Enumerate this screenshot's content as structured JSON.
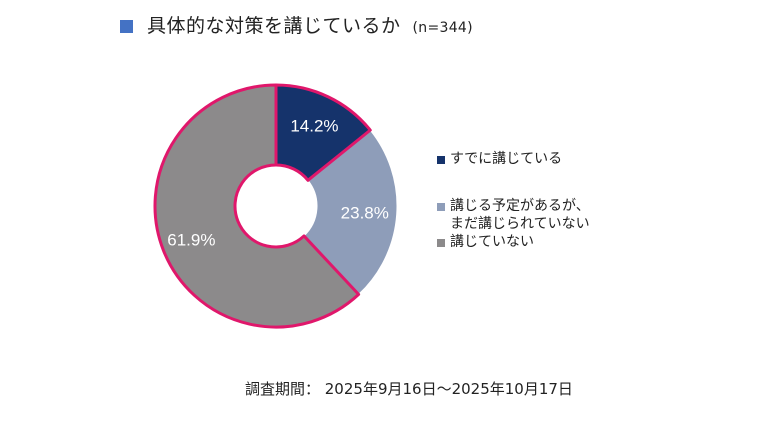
{
  "title": {
    "text": "具体的な対策を講じているか",
    "sample": "(n=344)",
    "square_color": "#4472c4"
  },
  "chart_data": {
    "type": "pie",
    "donut": true,
    "unit": "%",
    "categories": [
      "すでに講じている",
      "講じる予定があるが、まだ講じられていない",
      "講じていない"
    ],
    "values": [
      14.2,
      23.8,
      61.9
    ],
    "labels": [
      "14.2%",
      "23.8%",
      "61.9%"
    ],
    "colors": [
      "#15336b",
      "#8e9db9",
      "#8c8a8b"
    ],
    "outline_color": "#e0176b",
    "legend_position": "right"
  },
  "legend": {
    "items": [
      {
        "lines": [
          "すでに講じている"
        ],
        "color": "#15336b"
      },
      {
        "lines": [
          "講じる予定があるが、",
          "まだ講じられていない"
        ],
        "color": "#8e9db9"
      },
      {
        "lines": [
          "講じていない"
        ],
        "color": "#8c8a8b"
      }
    ]
  },
  "footer": {
    "text": "調査期間： 2025年9月16日～2025年10月17日"
  }
}
